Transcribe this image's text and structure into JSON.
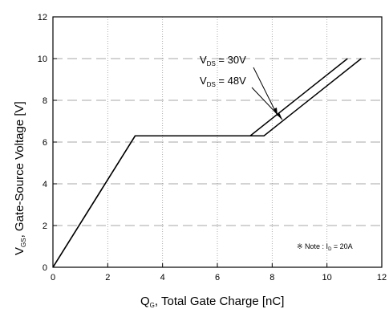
{
  "chart_data": {
    "type": "line",
    "xlabel": {
      "main": "Q",
      "sub": "G",
      "rest": ", Total Gate Charge [nC]"
    },
    "ylabel": {
      "main": "V",
      "sub": "GS",
      "rest": ", Gate-Source Voltage [V]"
    },
    "xlim": [
      0,
      12
    ],
    "ylim": [
      0,
      12
    ],
    "xticks": [
      0,
      2,
      4,
      6,
      8,
      10,
      12
    ],
    "yticks": [
      0,
      2,
      4,
      6,
      8,
      10,
      12
    ],
    "grid": true,
    "series": [
      {
        "name": "VDS = 30V",
        "x": [
          0,
          3.0,
          7.2,
          10.75
        ],
        "y": [
          0,
          6.3,
          6.3,
          10.0
        ]
      },
      {
        "name": "VDS = 48V",
        "x": [
          0,
          3.0,
          7.7,
          11.25
        ],
        "y": [
          0,
          6.3,
          6.3,
          10.0
        ]
      }
    ],
    "annotations": {
      "a30": {
        "main": "V",
        "sub": "DS",
        "rest": " = 30V"
      },
      "a48": {
        "main": "V",
        "sub": "DS",
        "rest": " = 48V"
      },
      "note": {
        "pre": "※ Note : I",
        "sub": "D",
        "rest": " = 20A"
      }
    }
  }
}
